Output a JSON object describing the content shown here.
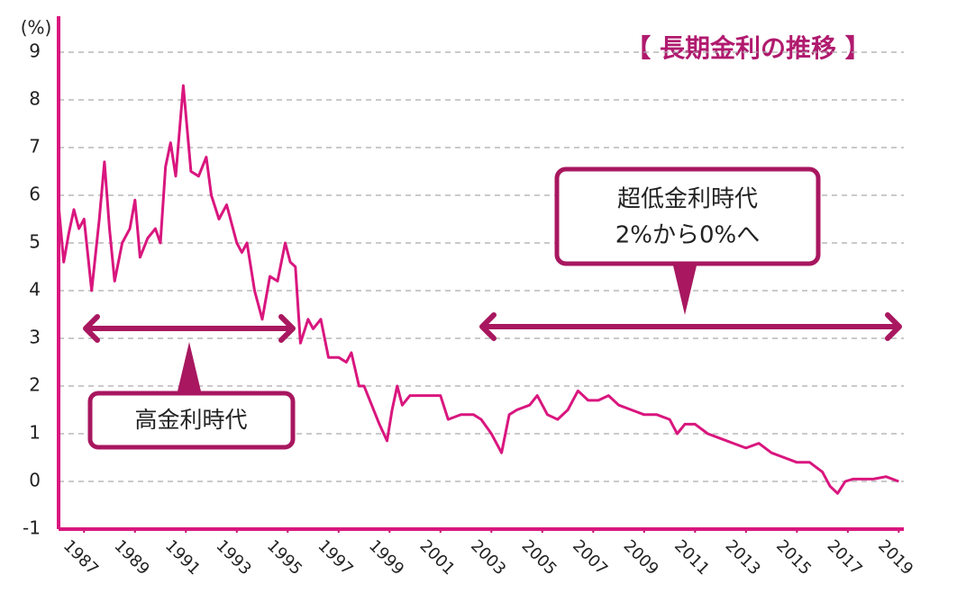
{
  "chart_data": {
    "type": "line",
    "title": "【 長期金利の推移 】",
    "y_label": "(%)",
    "annotations": [
      "高金利時代",
      "超低金利時代",
      "2%から0%へ"
    ],
    "color": "#d9167e",
    "x": [
      1986.0,
      1986.2,
      1986.4,
      1986.6,
      1986.8,
      1987.0,
      1987.3,
      1987.6,
      1987.8,
      1988.0,
      1988.2,
      1988.5,
      1988.8,
      1989.0,
      1989.2,
      1989.5,
      1989.8,
      1990.0,
      1990.2,
      1990.4,
      1990.6,
      1990.9,
      1991.2,
      1991.5,
      1991.8,
      1992.0,
      1992.3,
      1992.6,
      1993.0,
      1993.2,
      1993.4,
      1993.7,
      1994.0,
      1994.3,
      1994.6,
      1994.9,
      1995.1,
      1995.3,
      1995.5,
      1995.8,
      1996.0,
      1996.3,
      1996.6,
      1997.0,
      1997.3,
      1997.5,
      1997.8,
      1998.0,
      1998.3,
      1998.6,
      1998.9,
      1999.1,
      1999.3,
      1999.5,
      1999.8,
      2000.2,
      2000.6,
      2001.0,
      2001.3,
      2001.8,
      2002.3,
      2002.6,
      2003.0,
      2003.4,
      2003.7,
      2004.0,
      2004.5,
      2004.8,
      2005.2,
      2005.6,
      2006.0,
      2006.4,
      2006.8,
      2007.2,
      2007.6,
      2008.0,
      2008.5,
      2009.0,
      2009.5,
      2010.0,
      2010.3,
      2010.6,
      2011.0,
      2011.5,
      2012.0,
      2012.5,
      2013.0,
      2013.5,
      2014.0,
      2014.5,
      2015.0,
      2015.5,
      2016.0,
      2016.3,
      2016.6,
      2016.9,
      2017.2,
      2017.5,
      2018.0,
      2018.5,
      2019.0
    ],
    "values": [
      5.8,
      4.6,
      5.2,
      5.7,
      5.3,
      5.5,
      4.0,
      5.5,
      6.7,
      5.3,
      4.2,
      5.0,
      5.3,
      5.9,
      4.7,
      5.1,
      5.3,
      5.0,
      6.6,
      7.1,
      6.4,
      8.3,
      6.5,
      6.4,
      6.8,
      6.0,
      5.5,
      5.8,
      5.0,
      4.8,
      5.0,
      4.0,
      3.4,
      4.3,
      4.2,
      5.0,
      4.6,
      4.5,
      2.9,
      3.4,
      3.2,
      3.4,
      2.6,
      2.6,
      2.5,
      2.7,
      2.0,
      2.0,
      1.6,
      1.2,
      0.85,
      1.5,
      2.0,
      1.6,
      1.8,
      1.8,
      1.8,
      1.8,
      1.3,
      1.4,
      1.4,
      1.3,
      1.0,
      0.6,
      1.4,
      1.5,
      1.6,
      1.8,
      1.4,
      1.3,
      1.5,
      1.9,
      1.7,
      1.7,
      1.8,
      1.6,
      1.5,
      1.4,
      1.4,
      1.3,
      1.0,
      1.2,
      1.2,
      1.0,
      0.9,
      0.8,
      0.7,
      0.8,
      0.6,
      0.5,
      0.4,
      0.4,
      0.2,
      -0.1,
      -0.25,
      0.0,
      0.05,
      0.05,
      0.05,
      0.1,
      0.0
    ],
    "xlim": [
      1986,
      2019.2
    ],
    "xticks": [
      1987,
      1989,
      1991,
      1993,
      1995,
      1997,
      1999,
      2001,
      2003,
      2005,
      2007,
      2009,
      2011,
      2013,
      2015,
      2017,
      2019
    ],
    "ylim": [
      -1,
      9
    ],
    "yticks": [
      -1,
      0,
      1,
      2,
      3,
      4,
      5,
      6,
      7,
      8,
      9
    ],
    "grid": true
  }
}
